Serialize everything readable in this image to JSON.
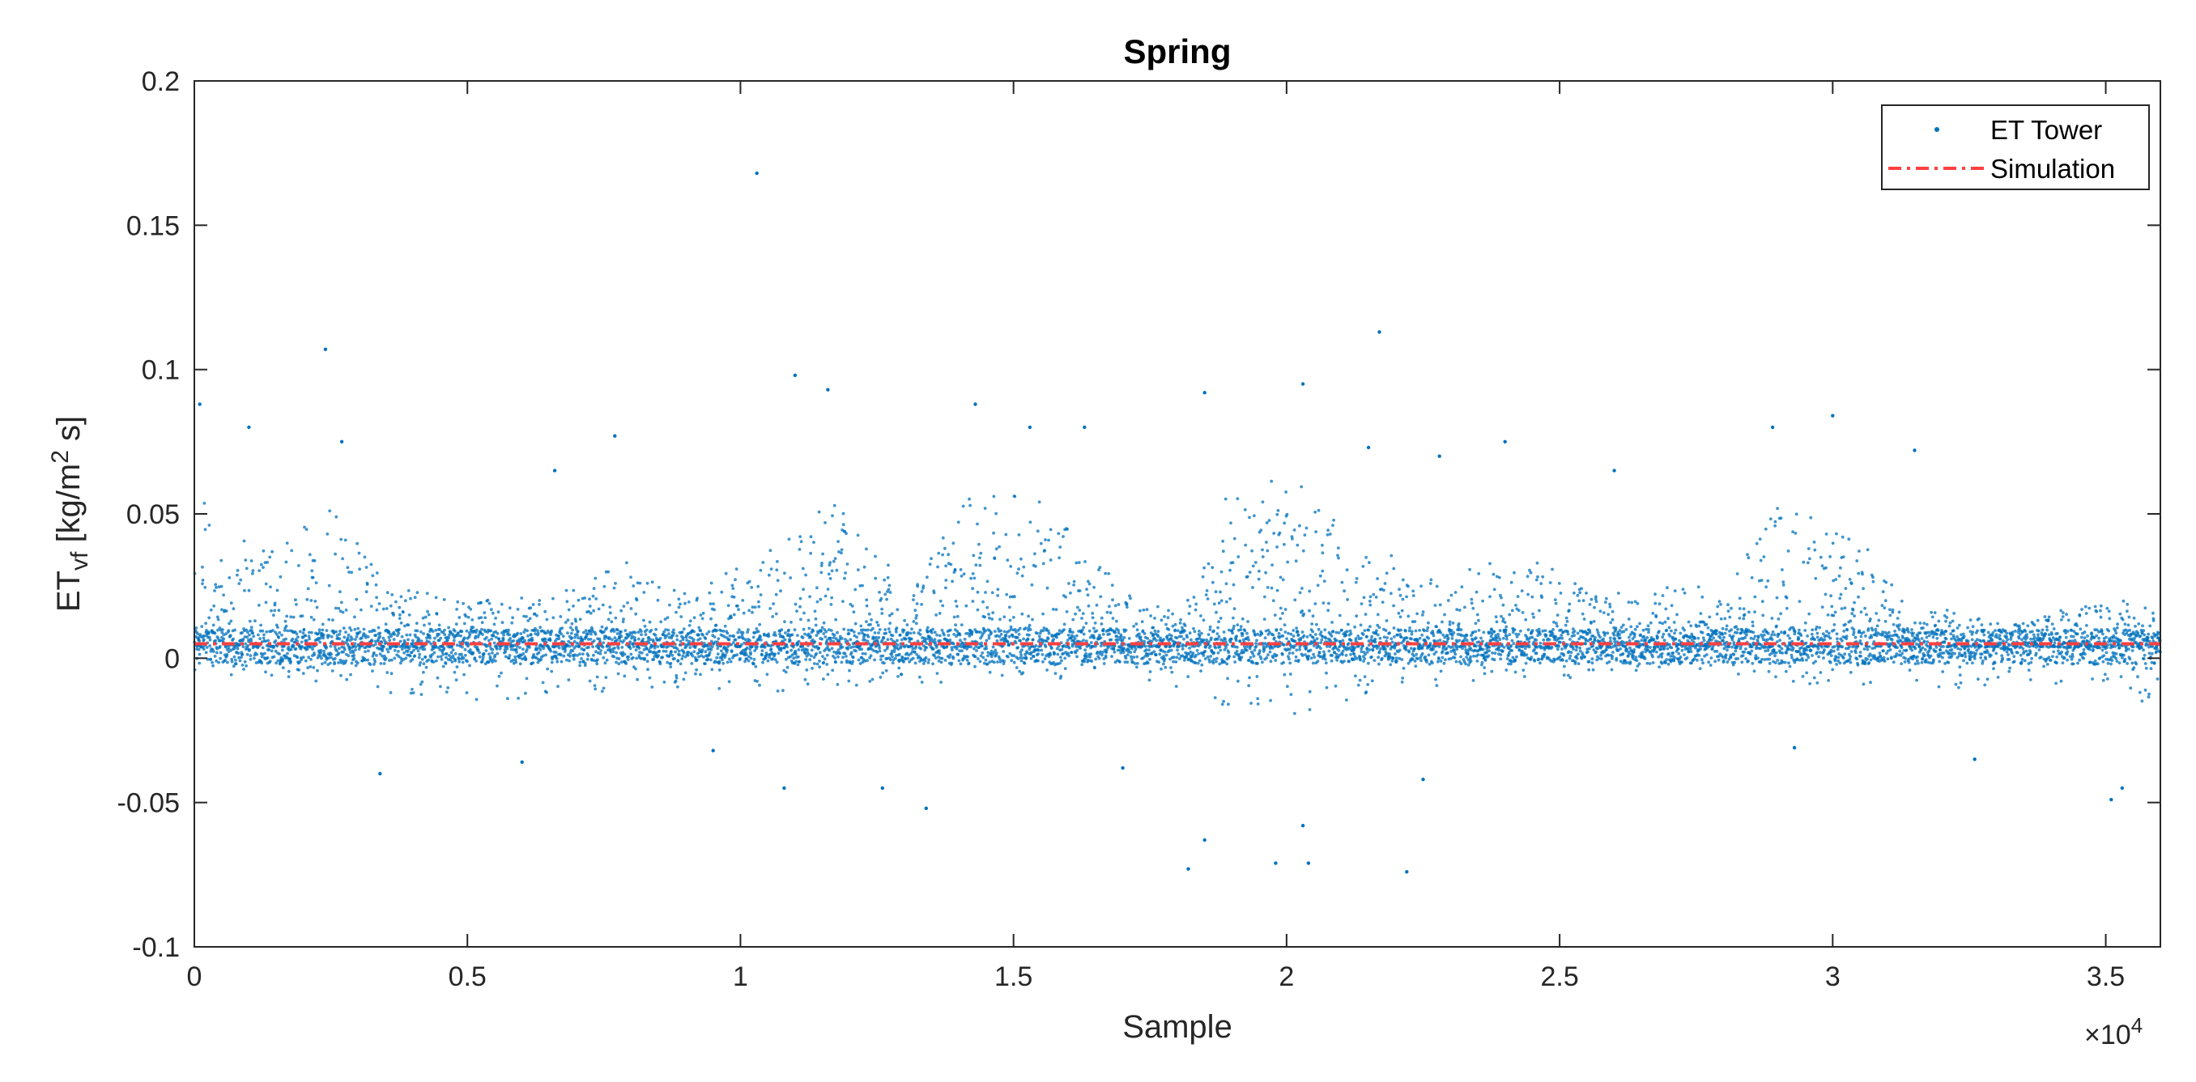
{
  "chart_data": {
    "type": "scatter",
    "title": "Spring",
    "xlabel": "Sample",
    "ylabel_main": "ET",
    "ylabel_sub": "vf",
    "ylabel_unit_pre": " [kg/m",
    "ylabel_unit_sup": "2",
    "ylabel_unit_post": " s]",
    "x_exponent_base": "×10",
    "x_exponent_power": "4",
    "xlim": [
      0,
      36000
    ],
    "ylim": [
      -0.1,
      0.2
    ],
    "x_ticks": [
      0,
      5000,
      10000,
      15000,
      20000,
      25000,
      30000,
      35000
    ],
    "x_tick_labels": [
      "0",
      "0.5",
      "1",
      "1.5",
      "2",
      "2.5",
      "3",
      "3.5"
    ],
    "y_ticks": [
      -0.1,
      -0.05,
      0,
      0.05,
      0.1,
      0.15,
      0.2
    ],
    "y_tick_labels": [
      "-0.1",
      "-0.05",
      "0",
      "0.05",
      "0.1",
      "0.15",
      "0.2"
    ],
    "grid": false,
    "legend_position": "top-right",
    "colors": {
      "et_tower": "#0072BD",
      "simulation": "#FF4040",
      "axes": "#262626"
    },
    "series": [
      {
        "name": "ET Tower",
        "style": "points",
        "n_points": 36000,
        "envelope_x": [
          0,
          500,
          1500,
          2500,
          3500,
          5000,
          6500,
          7800,
          9000,
          10500,
          11800,
          13000,
          14300,
          15500,
          17000,
          18000,
          19000,
          20300,
          21500,
          23000,
          24500,
          26000,
          27000,
          28000,
          29000,
          30200,
          31500,
          33000,
          34500,
          36000
        ],
        "envelope_y_upper": [
          0.065,
          0.035,
          0.04,
          0.055,
          0.025,
          0.02,
          0.02,
          0.035,
          0.02,
          0.04,
          0.055,
          0.02,
          0.06,
          0.055,
          0.025,
          0.015,
          0.055,
          0.065,
          0.035,
          0.025,
          0.035,
          0.02,
          0.025,
          0.02,
          0.055,
          0.045,
          0.02,
          0.012,
          0.018,
          0.02
        ],
        "envelope_y_lower": [
          -0.01,
          -0.006,
          -0.008,
          -0.008,
          -0.012,
          -0.015,
          -0.018,
          -0.012,
          -0.01,
          -0.012,
          -0.01,
          -0.01,
          -0.008,
          -0.008,
          -0.006,
          -0.012,
          -0.018,
          -0.02,
          -0.012,
          -0.01,
          -0.008,
          -0.006,
          -0.003,
          -0.005,
          -0.008,
          -0.01,
          -0.012,
          -0.01,
          -0.01,
          -0.02
        ],
        "outliers": [
          [
            10300,
            0.168
          ],
          [
            21700,
            0.113
          ],
          [
            2400,
            0.107
          ],
          [
            11000,
            0.098
          ],
          [
            18500,
            0.092
          ],
          [
            20300,
            0.095
          ],
          [
            11600,
            0.093
          ],
          [
            14300,
            0.088
          ],
          [
            30000,
            0.084
          ],
          [
            24000,
            0.075
          ],
          [
            100,
            0.088
          ],
          [
            2700,
            0.075
          ],
          [
            7700,
            0.077
          ],
          [
            21500,
            0.073
          ],
          [
            15300,
            0.08
          ],
          [
            1000,
            0.08
          ],
          [
            16300,
            0.08
          ],
          [
            22800,
            0.07
          ],
          [
            28900,
            0.08
          ],
          [
            31500,
            0.072
          ],
          [
            6600,
            0.065
          ],
          [
            26000,
            0.065
          ],
          [
            18200,
            -0.073
          ],
          [
            22200,
            -0.074
          ],
          [
            20400,
            -0.071
          ],
          [
            19800,
            -0.071
          ],
          [
            18500,
            -0.063
          ],
          [
            20300,
            -0.058
          ],
          [
            13400,
            -0.052
          ],
          [
            35100,
            -0.049
          ],
          [
            35300,
            -0.045
          ],
          [
            10800,
            -0.045
          ],
          [
            12600,
            -0.045
          ],
          [
            3400,
            -0.04
          ],
          [
            22500,
            -0.042
          ],
          [
            17000,
            -0.038
          ],
          [
            32600,
            -0.035
          ],
          [
            6000,
            -0.036
          ],
          [
            9500,
            -0.032
          ],
          [
            29300,
            -0.031
          ]
        ]
      },
      {
        "name": "Simulation",
        "style": "dash-dot",
        "x": [
          0,
          36000
        ],
        "y": [
          0.005,
          0.005
        ]
      }
    ]
  }
}
